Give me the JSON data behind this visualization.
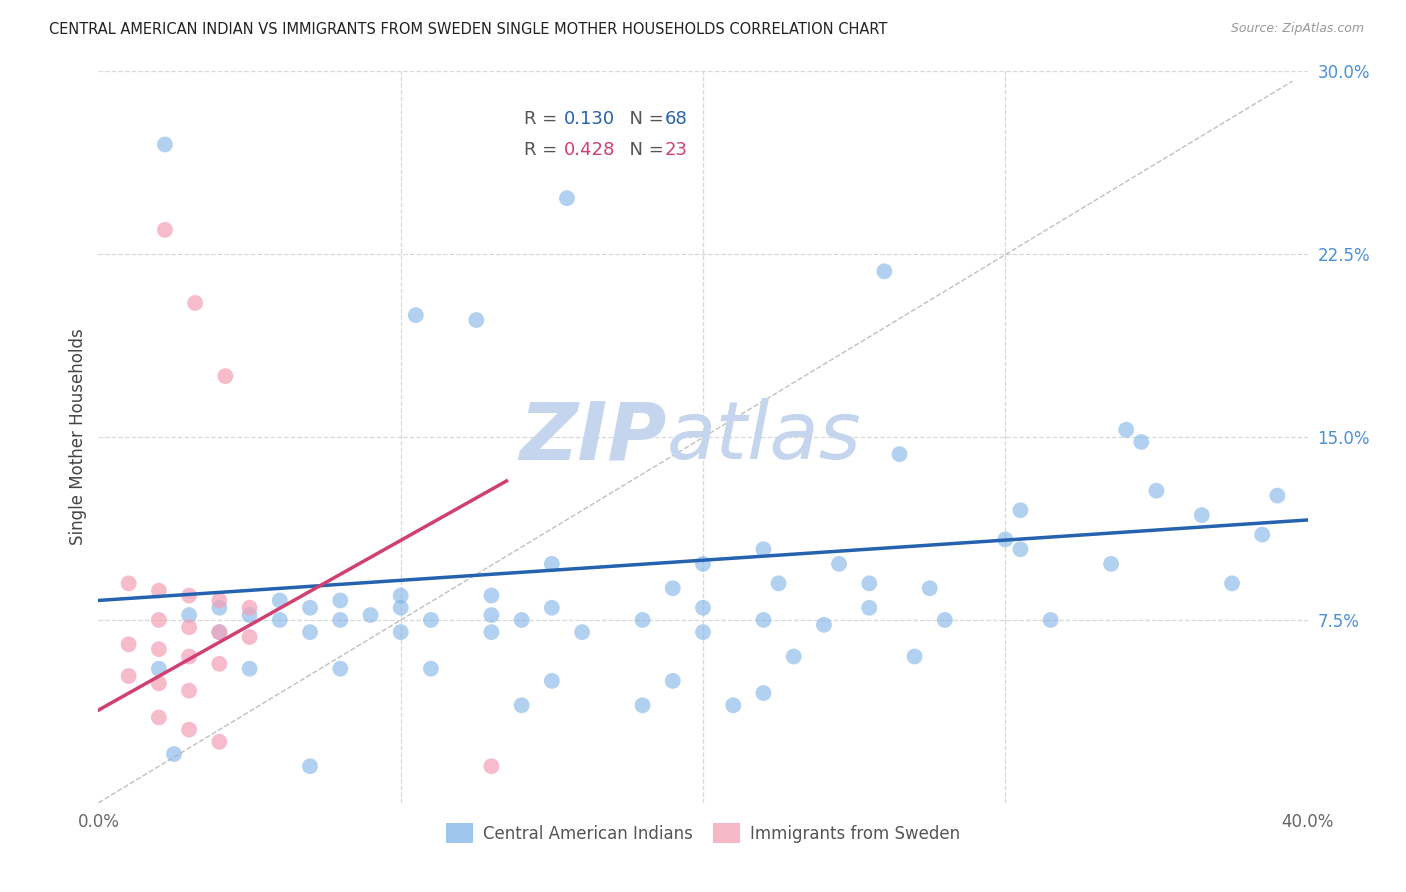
{
  "title": "CENTRAL AMERICAN INDIAN VS IMMIGRANTS FROM SWEDEN SINGLE MOTHER HOUSEHOLDS CORRELATION CHART",
  "source": "Source: ZipAtlas.com",
  "ylabel": "Single Mother Households",
  "xlim": [
    0.0,
    0.4
  ],
  "ylim": [
    0.0,
    0.3
  ],
  "xticks": [
    0.0,
    0.1,
    0.2,
    0.3,
    0.4
  ],
  "xticklabels": [
    "0.0%",
    "",
    "",
    "",
    "40.0%"
  ],
  "blue_R": "0.130",
  "blue_N": "68",
  "pink_R": "0.428",
  "pink_N": "23",
  "legend_label_blue": "Central American Indians",
  "legend_label_pink": "Immigrants from Sweden",
  "watermark_zip": "ZIP",
  "watermark_atlas": "atlas",
  "blue_scatter": [
    [
      0.022,
      0.27
    ],
    [
      0.155,
      0.248
    ],
    [
      0.105,
      0.2
    ],
    [
      0.125,
      0.198
    ],
    [
      0.26,
      0.218
    ],
    [
      0.345,
      0.148
    ],
    [
      0.265,
      0.143
    ],
    [
      0.35,
      0.128
    ],
    [
      0.39,
      0.126
    ],
    [
      0.34,
      0.153
    ],
    [
      0.305,
      0.12
    ],
    [
      0.365,
      0.118
    ],
    [
      0.3,
      0.108
    ],
    [
      0.385,
      0.11
    ],
    [
      0.22,
      0.104
    ],
    [
      0.305,
      0.104
    ],
    [
      0.15,
      0.098
    ],
    [
      0.2,
      0.098
    ],
    [
      0.245,
      0.098
    ],
    [
      0.335,
      0.098
    ],
    [
      0.375,
      0.09
    ],
    [
      0.225,
      0.09
    ],
    [
      0.255,
      0.09
    ],
    [
      0.19,
      0.088
    ],
    [
      0.275,
      0.088
    ],
    [
      0.1,
      0.085
    ],
    [
      0.13,
      0.085
    ],
    [
      0.06,
      0.083
    ],
    [
      0.08,
      0.083
    ],
    [
      0.04,
      0.08
    ],
    [
      0.07,
      0.08
    ],
    [
      0.1,
      0.08
    ],
    [
      0.15,
      0.08
    ],
    [
      0.2,
      0.08
    ],
    [
      0.255,
      0.08
    ],
    [
      0.03,
      0.077
    ],
    [
      0.05,
      0.077
    ],
    [
      0.09,
      0.077
    ],
    [
      0.13,
      0.077
    ],
    [
      0.06,
      0.075
    ],
    [
      0.08,
      0.075
    ],
    [
      0.11,
      0.075
    ],
    [
      0.14,
      0.075
    ],
    [
      0.18,
      0.075
    ],
    [
      0.22,
      0.075
    ],
    [
      0.28,
      0.075
    ],
    [
      0.315,
      0.075
    ],
    [
      0.04,
      0.07
    ],
    [
      0.07,
      0.07
    ],
    [
      0.1,
      0.07
    ],
    [
      0.13,
      0.07
    ],
    [
      0.16,
      0.07
    ],
    [
      0.2,
      0.07
    ],
    [
      0.23,
      0.06
    ],
    [
      0.27,
      0.06
    ],
    [
      0.02,
      0.055
    ],
    [
      0.05,
      0.055
    ],
    [
      0.08,
      0.055
    ],
    [
      0.11,
      0.055
    ],
    [
      0.15,
      0.05
    ],
    [
      0.19,
      0.05
    ],
    [
      0.22,
      0.045
    ],
    [
      0.14,
      0.04
    ],
    [
      0.18,
      0.04
    ],
    [
      0.21,
      0.04
    ],
    [
      0.025,
      0.02
    ],
    [
      0.07,
      0.015
    ],
    [
      0.24,
      0.073
    ]
  ],
  "pink_scatter": [
    [
      0.022,
      0.235
    ],
    [
      0.032,
      0.205
    ],
    [
      0.042,
      0.175
    ],
    [
      0.01,
      0.09
    ],
    [
      0.02,
      0.087
    ],
    [
      0.03,
      0.085
    ],
    [
      0.04,
      0.083
    ],
    [
      0.05,
      0.08
    ],
    [
      0.02,
      0.075
    ],
    [
      0.03,
      0.072
    ],
    [
      0.04,
      0.07
    ],
    [
      0.05,
      0.068
    ],
    [
      0.01,
      0.065
    ],
    [
      0.02,
      0.063
    ],
    [
      0.03,
      0.06
    ],
    [
      0.04,
      0.057
    ],
    [
      0.01,
      0.052
    ],
    [
      0.02,
      0.049
    ],
    [
      0.03,
      0.046
    ],
    [
      0.02,
      0.035
    ],
    [
      0.03,
      0.03
    ],
    [
      0.04,
      0.025
    ],
    [
      0.13,
      0.015
    ]
  ],
  "blue_line_x": [
    0.0,
    0.4
  ],
  "blue_line_y": [
    0.083,
    0.116
  ],
  "pink_line_x": [
    0.0,
    0.135
  ],
  "pink_line_y": [
    0.038,
    0.132
  ],
  "dashed_line_x": [
    0.0,
    0.395
  ],
  "dashed_line_y": [
    0.0,
    0.296
  ],
  "title_color": "#222222",
  "blue_color": "#7fb3e8",
  "pink_color": "#f4a0b5",
  "blue_line_color": "#2563b0",
  "pink_line_color": "#d04070",
  "axis_label_color": "#444444",
  "right_tick_color": "#4a90d9",
  "grid_color": "#d8d8d8",
  "watermark_color_zip": "#c5d5ee",
  "watermark_color_atlas": "#c5d5ee"
}
